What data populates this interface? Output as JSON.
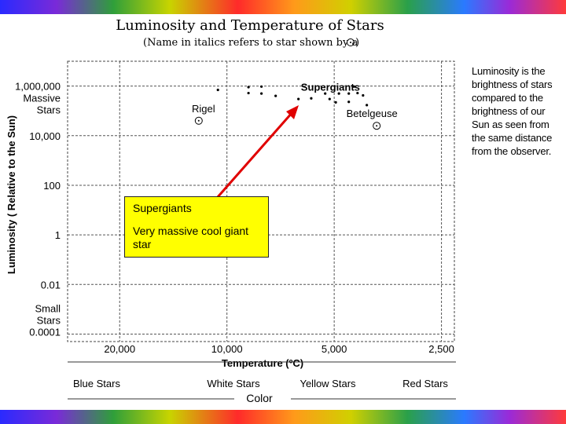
{
  "title": "Luminosity and Temperature of Stars",
  "subtitle": "(Name in italics refers to star shown by a",
  "subtitle_end": ")",
  "side_note": "Luminosity is the brightness of stars compared to the brightness of our Sun as seen from the same distance from the observer.",
  "callout": {
    "heading": "Supergiants",
    "body": "Very massive cool giant star"
  },
  "color_categories": [
    "Blue Stars",
    "White Stars",
    "Yellow Stars",
    "Red Stars"
  ],
  "color_axis_label": "Color",
  "colors": {
    "arrow": "#e00000",
    "callout_fill": "#ffff00",
    "text": "#000000"
  },
  "chart_data": {
    "type": "scatter",
    "title": "Luminosity and Temperature of Stars",
    "xlabel": "Temperature (ºC)",
    "ylabel": "Luminosity ( Relative to the Sun)",
    "x_scale": "log",
    "x_reversed": true,
    "y_scale": "log",
    "x_ticks": [
      {
        "value": 20000,
        "label": "20,000"
      },
      {
        "value": 10000,
        "label": "10,000"
      },
      {
        "value": 5000,
        "label": "5,000"
      },
      {
        "value": 2500,
        "label": "2,500"
      }
    ],
    "y_ticks": [
      {
        "value": 1000000,
        "label": "1,000,000",
        "sublabel": [
          "Massive",
          "Stars"
        ]
      },
      {
        "value": 10000,
        "label": "10,000",
        "sublabel": []
      },
      {
        "value": 100,
        "label": "100",
        "sublabel": []
      },
      {
        "value": 1,
        "label": "1",
        "sublabel": []
      },
      {
        "value": 0.01,
        "label": "0.01",
        "sublabel": []
      },
      {
        "value": 0.0001,
        "label": "0.0001",
        "sublabel": [
          "Small",
          "Stars"
        ]
      }
    ],
    "grid": true,
    "group_label": {
      "text": "Supergiants",
      "x": 6200,
      "y": 1000000
    },
    "named_stars": [
      {
        "name": "Rigel",
        "x": 12000,
        "y": 40000
      },
      {
        "name": "Betelgeuse",
        "x": 3800,
        "y": 25000
      }
    ],
    "points": [
      {
        "x": 10600,
        "y": 700000
      },
      {
        "x": 8700,
        "y": 900000
      },
      {
        "x": 8700,
        "y": 520000
      },
      {
        "x": 8000,
        "y": 950000
      },
      {
        "x": 8000,
        "y": 500000
      },
      {
        "x": 7300,
        "y": 400000
      },
      {
        "x": 6300,
        "y": 300000
      },
      {
        "x": 5800,
        "y": 320000
      },
      {
        "x": 5300,
        "y": 500000
      },
      {
        "x": 5150,
        "y": 300000
      },
      {
        "x": 4950,
        "y": 220000
      },
      {
        "x": 4850,
        "y": 500000
      },
      {
        "x": 4550,
        "y": 500000
      },
      {
        "x": 4550,
        "y": 230000
      },
      {
        "x": 4400,
        "y": 950000
      },
      {
        "x": 4300,
        "y": 520000
      },
      {
        "x": 4150,
        "y": 420000
      },
      {
        "x": 4050,
        "y": 170000
      }
    ]
  }
}
